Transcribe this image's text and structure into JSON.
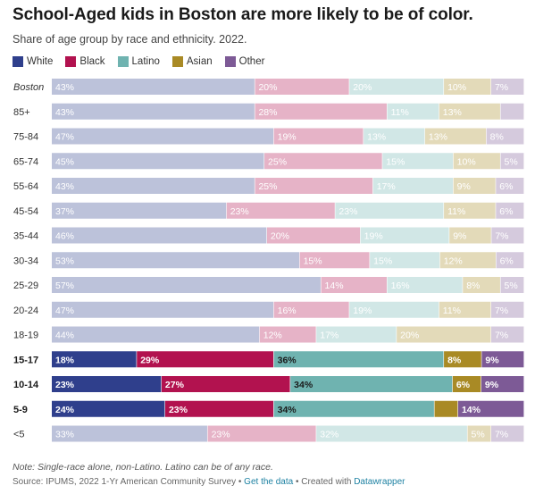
{
  "title": "School-Aged kids in Boston are more likely to be of color.",
  "subtitle": "Share of age group by race and ethnicity. 2022.",
  "note": "Note: Single-race alone, non-Latino. Latino can be of any race.",
  "source": {
    "text": "Source: IPUMS, 2022 1-Yr American Community Survey",
    "sep1": "•",
    "get_data": "Get the data",
    "sep2": "• Created with",
    "datawrapper": "Datawrapper"
  },
  "colors": {
    "White": "#2f3f8c",
    "Black": "#b2124f",
    "Latino": "#6fb3b0",
    "Asian": "#a98a25",
    "Other": "#7d5a96"
  },
  "chart_data": {
    "type": "bar",
    "stacked": true,
    "orientation": "horizontal",
    "xlim": [
      0,
      100
    ],
    "highlighted_categories": [
      "15-17",
      "10-14",
      "5-9"
    ],
    "categories": [
      "Boston",
      "85+",
      "75-84",
      "65-74",
      "55-64",
      "45-54",
      "35-44",
      "30-34",
      "25-29",
      "20-24",
      "18-19",
      "15-17",
      "10-14",
      "5-9",
      "<5"
    ],
    "series": [
      {
        "name": "White",
        "values": [
          43,
          43,
          47,
          45,
          43,
          37,
          46,
          53,
          57,
          47,
          44,
          18,
          23,
          24,
          33
        ],
        "labels": [
          "43%",
          "43%",
          "47%",
          "45%",
          "43%",
          "37%",
          "46%",
          "53%",
          "57%",
          "47%",
          "44%",
          "18%",
          "23%",
          "24%",
          "33%"
        ]
      },
      {
        "name": "Black",
        "values": [
          20,
          28,
          19,
          25,
          25,
          23,
          20,
          15,
          14,
          16,
          12,
          29,
          27,
          23,
          23
        ],
        "labels": [
          "20%",
          "28%",
          "19%",
          "25%",
          "25%",
          "23%",
          "20%",
          "15%",
          "14%",
          "16%",
          "12%",
          "29%",
          "27%",
          "23%",
          "23%"
        ]
      },
      {
        "name": "Latino",
        "values": [
          20,
          11,
          13,
          15,
          17,
          23,
          19,
          15,
          16,
          19,
          17,
          36,
          34,
          34,
          32
        ],
        "labels": [
          "20%",
          "11%",
          "13%",
          "15%",
          "17%",
          "23%",
          "19%",
          "15%",
          "16%",
          "19%",
          "17%",
          "36%",
          "34%",
          "34%",
          "32%"
        ]
      },
      {
        "name": "Asian",
        "values": [
          10,
          13,
          13,
          10,
          9,
          11,
          9,
          12,
          8,
          11,
          20,
          8,
          6,
          5,
          5
        ],
        "labels": [
          "10%",
          "13%",
          "13%",
          "10%",
          "9%",
          "11%",
          "9%",
          "12%",
          "8%",
          "11%",
          "20%",
          "8%",
          "6%",
          "",
          "5%"
        ]
      },
      {
        "name": "Other",
        "values": [
          7,
          5,
          8,
          5,
          6,
          6,
          7,
          6,
          5,
          7,
          7,
          9,
          9,
          14,
          7
        ],
        "labels": [
          "7%",
          "",
          "8%",
          "5%",
          "6%",
          "6%",
          "7%",
          "6%",
          "5%",
          "7%",
          "7%",
          "9%",
          "9%",
          "14%",
          "7%"
        ]
      }
    ]
  }
}
